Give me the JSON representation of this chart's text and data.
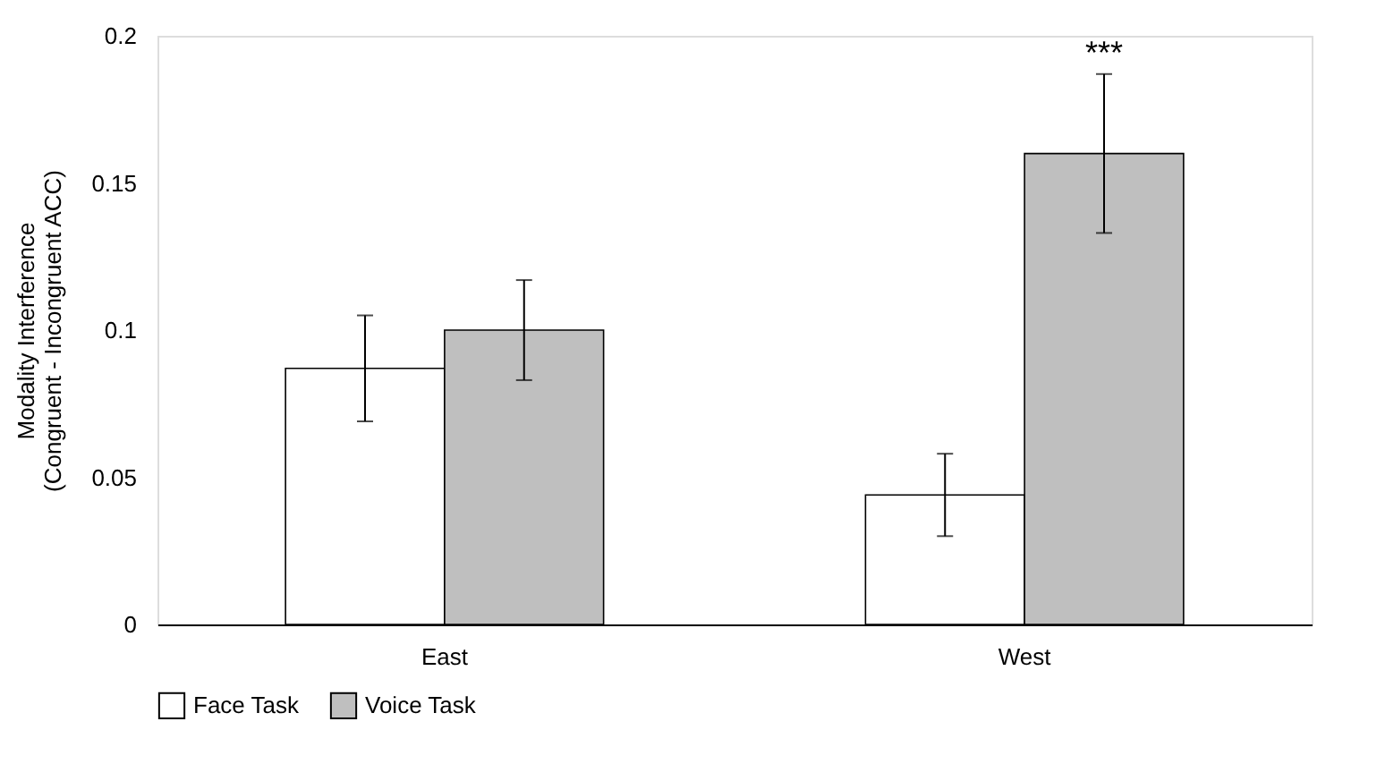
{
  "chart_data": {
    "type": "bar",
    "ylabel": "Modality Interference\n(Congruent - Incongruent ACC)",
    "categories": [
      "East",
      "West"
    ],
    "series": [
      {
        "name": "Face Task",
        "color": "#ffffff",
        "values": [
          0.087,
          0.044
        ],
        "errors": [
          0.018,
          0.014
        ]
      },
      {
        "name": "Voice Task",
        "color": "#bfbfbf",
        "values": [
          0.1,
          0.16
        ],
        "errors": [
          0.017,
          0.027
        ]
      }
    ],
    "ylim": [
      0,
      0.2
    ],
    "yticks": [
      0,
      0.05,
      0.1,
      0.15,
      0.2
    ],
    "grid": false,
    "legend": "bottom",
    "annotations": [
      "***"
    ]
  }
}
